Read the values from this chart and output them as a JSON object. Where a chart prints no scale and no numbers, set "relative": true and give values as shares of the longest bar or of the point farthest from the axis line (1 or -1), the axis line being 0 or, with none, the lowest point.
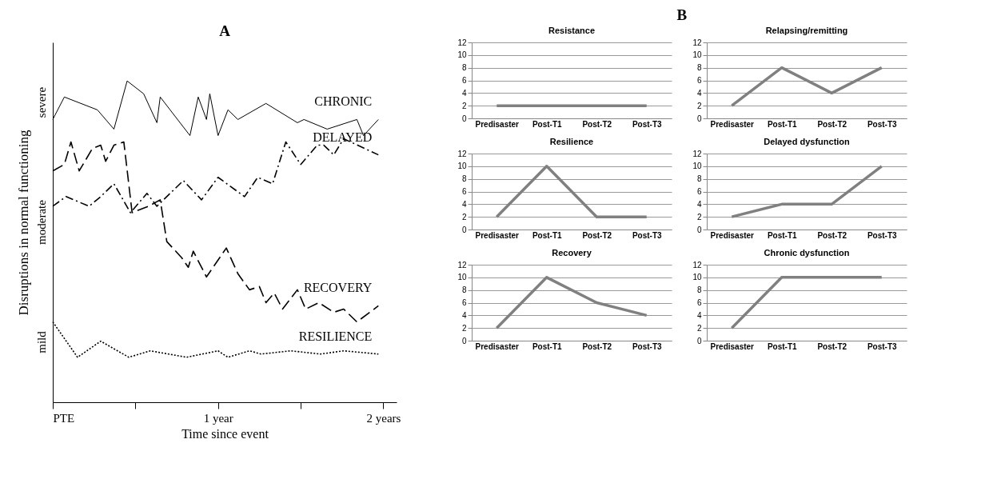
{
  "chart_data": [
    {
      "type": "line",
      "title": "A",
      "xlabel": "Time since event",
      "ylabel": "Disruptions in normal functioning",
      "relative": true,
      "grid": false,
      "xlim": [
        0,
        2.08
      ],
      "xticks": [
        {
          "value": 0,
          "label": "PTE"
        },
        {
          "value": 0.5,
          "label": null
        },
        {
          "value": 1,
          "label": "1 year"
        },
        {
          "value": 1.5,
          "label": null
        },
        {
          "value": 2,
          "label": "2 years"
        }
      ],
      "annotations": [
        "mild",
        "moderate",
        "severe"
      ],
      "series": [
        {
          "name": "CHRONIC",
          "color": "#000000",
          "line_style": "solid",
          "x": [
            0,
            0.07,
            0.27,
            0.37,
            0.45,
            0.55,
            0.63,
            0.65,
            0.83,
            0.88,
            0.93,
            0.95,
            1.0,
            1.06,
            1.12,
            1.29,
            1.48,
            1.52,
            1.66,
            1.84,
            1.88,
            1.97
          ],
          "values": [
            0.88,
            0.95,
            0.91,
            0.85,
            1.0,
            0.96,
            0.87,
            0.95,
            0.83,
            0.95,
            0.88,
            0.96,
            0.83,
            0.91,
            0.88,
            0.93,
            0.87,
            0.88,
            0.85,
            0.88,
            0.83,
            0.88
          ]
        },
        {
          "name": "DELAYED",
          "color": "#000000",
          "line_style": "dashdot",
          "x": [
            0,
            0.08,
            0.22,
            0.29,
            0.37,
            0.47,
            0.57,
            0.63,
            0.79,
            0.9,
            1.0,
            1.16,
            1.24,
            1.33,
            1.41,
            1.5,
            1.6,
            1.64,
            1.7,
            1.76,
            1.97
          ],
          "values": [
            0.61,
            0.64,
            0.61,
            0.64,
            0.68,
            0.59,
            0.65,
            0.61,
            0.69,
            0.63,
            0.7,
            0.64,
            0.7,
            0.68,
            0.81,
            0.74,
            0.8,
            0.8,
            0.77,
            0.82,
            0.77
          ]
        },
        {
          "name": "RECOVERY",
          "color": "#000000",
          "line_style": "dashed",
          "x": [
            0,
            0.07,
            0.11,
            0.16,
            0.24,
            0.29,
            0.32,
            0.37,
            0.43,
            0.48,
            0.58,
            0.65,
            0.69,
            0.78,
            0.82,
            0.85,
            0.93,
            1.05,
            1.12,
            1.19,
            1.25,
            1.29,
            1.34,
            1.39,
            1.48,
            1.53,
            1.61,
            1.7,
            1.76,
            1.84,
            1.97
          ],
          "values": [
            0.72,
            0.74,
            0.81,
            0.72,
            0.79,
            0.8,
            0.75,
            0.8,
            0.81,
            0.59,
            0.61,
            0.63,
            0.5,
            0.45,
            0.42,
            0.47,
            0.39,
            0.48,
            0.4,
            0.35,
            0.36,
            0.31,
            0.34,
            0.29,
            0.35,
            0.29,
            0.31,
            0.28,
            0.29,
            0.25,
            0.3
          ]
        },
        {
          "name": "RESILIENCE",
          "color": "#000000",
          "line_style": "dotted",
          "x": [
            0,
            0.15,
            0.29,
            0.46,
            0.59,
            0.81,
            1.0,
            1.06,
            1.19,
            1.26,
            1.44,
            1.62,
            1.76,
            1.97
          ],
          "values": [
            0.25,
            0.14,
            0.19,
            0.14,
            0.16,
            0.14,
            0.16,
            0.14,
            0.16,
            0.15,
            0.16,
            0.15,
            0.16,
            0.15
          ]
        }
      ]
    },
    {
      "type": "line",
      "title": "Resistance",
      "annotations": [
        "B"
      ],
      "categories": [
        "Predisaster",
        "Post-T1",
        "Post-T2",
        "Post-T3"
      ],
      "values": [
        2,
        2,
        2,
        2
      ],
      "color": "#808080",
      "ylim": [
        0,
        12
      ],
      "yticks": [
        0,
        2,
        4,
        6,
        8,
        10,
        12
      ],
      "grid": "y"
    },
    {
      "type": "line",
      "title": "Relapsing/remitting",
      "categories": [
        "Predisaster",
        "Post-T1",
        "Post-T2",
        "Post-T3"
      ],
      "values": [
        2,
        8,
        4,
        8
      ],
      "color": "#808080",
      "ylim": [
        0,
        12
      ],
      "yticks": [
        0,
        2,
        4,
        6,
        8,
        10,
        12
      ],
      "grid": "y"
    },
    {
      "type": "line",
      "title": "Resilience",
      "categories": [
        "Predisaster",
        "Post-T1",
        "Post-T2",
        "Post-T3"
      ],
      "values": [
        2,
        10,
        2,
        2
      ],
      "color": "#808080",
      "ylim": [
        0,
        12
      ],
      "yticks": [
        0,
        2,
        4,
        6,
        8,
        10,
        12
      ],
      "grid": "y"
    },
    {
      "type": "line",
      "title": "Delayed dysfunction",
      "categories": [
        "Predisaster",
        "Post-T1",
        "Post-T2",
        "Post-T3"
      ],
      "values": [
        2,
        4,
        4,
        10
      ],
      "color": "#808080",
      "ylim": [
        0,
        12
      ],
      "yticks": [
        0,
        2,
        4,
        6,
        8,
        10,
        12
      ],
      "grid": "y"
    },
    {
      "type": "line",
      "title": "Recovery",
      "categories": [
        "Predisaster",
        "Post-T1",
        "Post-T2",
        "Post-T3"
      ],
      "values": [
        2,
        10,
        6,
        4
      ],
      "color": "#808080",
      "ylim": [
        0,
        12
      ],
      "yticks": [
        0,
        2,
        4,
        6,
        8,
        10,
        12
      ],
      "grid": "y"
    },
    {
      "type": "line",
      "title": "Chronic dysfunction",
      "categories": [
        "Predisaster",
        "Post-T1",
        "Post-T2",
        "Post-T3"
      ],
      "values": [
        2,
        10,
        10,
        10
      ],
      "color": "#808080",
      "ylim": [
        0,
        12
      ],
      "yticks": [
        0,
        2,
        4,
        6,
        8,
        10,
        12
      ],
      "grid": "y"
    }
  ]
}
